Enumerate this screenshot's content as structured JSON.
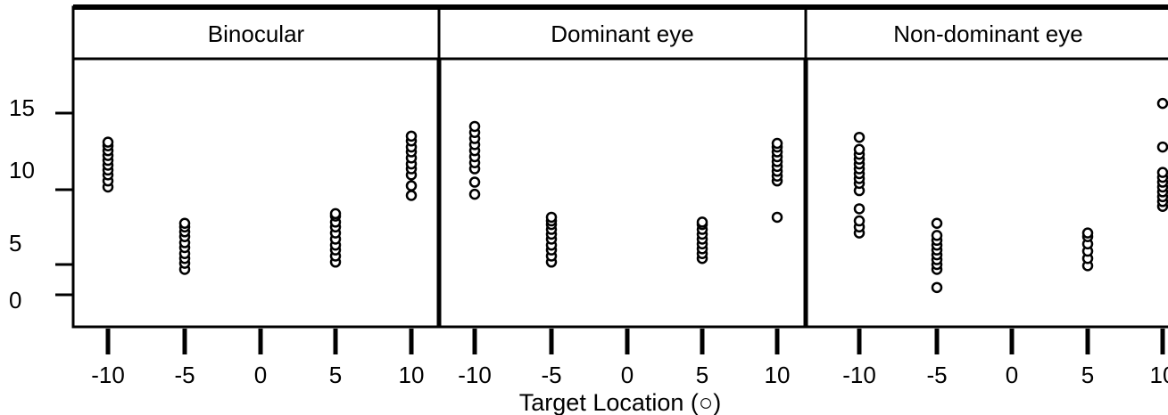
{
  "chart_data": {
    "type": "scatter",
    "panels": [
      {
        "title": "Binocular",
        "series": [
          {
            "x": -10,
            "y": [
              8.9,
              9.4,
              9.9,
              10.3,
              10.7,
              11.1,
              11.5,
              11.9,
              12.3,
              12.6
            ]
          },
          {
            "x": -5,
            "y": [
              2.1,
              2.6,
              3.0,
              3.4,
              3.9,
              4.3,
              4.8,
              5.2,
              5.6,
              5.9
            ]
          },
          {
            "x": 5,
            "y": [
              2.7,
              3.2,
              3.7,
              4.1,
              4.6,
              5.1,
              5.6,
              6.0,
              6.5,
              6.7
            ]
          },
          {
            "x": 10,
            "y": [
              8.2,
              9.0,
              9.9,
              10.4,
              10.8,
              11.3,
              11.8,
              12.2,
              12.7,
              13.1
            ]
          }
        ]
      },
      {
        "title": "Dominant eye",
        "series": [
          {
            "x": -10,
            "y": [
              8.3,
              9.3,
              10.4,
              10.9,
              11.4,
              11.9,
              12.4,
              12.9,
              13.4,
              13.9
            ]
          },
          {
            "x": -5,
            "y": [
              2.7,
              3.2,
              3.7,
              4.1,
              4.6,
              5.0,
              5.4,
              5.8,
              6.1,
              6.4
            ]
          },
          {
            "x": 5,
            "y": [
              3.0,
              3.4,
              3.8,
              4.2,
              4.6,
              5.0,
              5.4,
              5.8,
              6.0
            ]
          },
          {
            "x": 10,
            "y": [
              6.4,
              9.4,
              9.8,
              10.2,
              10.6,
              11.0,
              11.4,
              11.8,
              12.2,
              12.5
            ]
          }
        ]
      },
      {
        "title": "Non-dominant eye",
        "series": [
          {
            "x": -10,
            "y": [
              5.1,
              5.6,
              6.1,
              7.1,
              8.6,
              9.2,
              9.6,
              10.0,
              10.4,
              10.8,
              11.2,
              11.6,
              12.0,
              13.0
            ]
          },
          {
            "x": -5,
            "y": [
              0.6,
              2.1,
              2.5,
              2.9,
              3.3,
              3.7,
              4.1,
              4.5,
              4.9,
              5.9
            ]
          },
          {
            "x": 5,
            "y": [
              2.4,
              3.0,
              3.6,
              4.2,
              4.8,
              5.1
            ]
          },
          {
            "x": 10,
            "y": [
              7.3,
              7.7,
              8.1,
              8.5,
              8.9,
              9.3,
              9.7,
              10.1,
              12.2,
              15.8
            ]
          }
        ]
      }
    ],
    "x_ticks": [
      "-10",
      "-5",
      "0",
      "5",
      "10"
    ],
    "y_ticks": [
      "0",
      "5",
      "10",
      "15"
    ],
    "xlabel": "Target Location (○)",
    "ylabel": "",
    "xlim": [
      -10,
      10
    ],
    "ylim": [
      0,
      15
    ],
    "grid": false,
    "marker": "open-circle"
  }
}
